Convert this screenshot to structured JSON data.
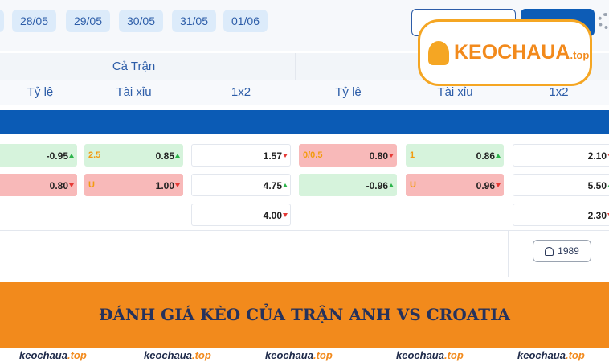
{
  "dates": [
    "28/05",
    "29/05",
    "30/05",
    "31/05",
    "01/06"
  ],
  "header": {
    "period": "Cả Trận",
    "columns": [
      "Tỷ lệ",
      "Tài xỉu",
      "1x2",
      "Tỷ lệ",
      "Tài xỉu",
      "1x2"
    ]
  },
  "rows": [
    [
      {
        "odds": "-0.95",
        "trend": "up",
        "tone": "green"
      },
      {
        "label": "2.5",
        "odds": "0.85",
        "trend": "up",
        "tone": "green"
      },
      {
        "odds": "1.57",
        "trend": "down",
        "tone": "white"
      },
      {
        "label": "0/0.5",
        "odds": "0.80",
        "trend": "down",
        "tone": "red"
      },
      {
        "label": "1",
        "odds": "0.86",
        "trend": "up",
        "tone": "green"
      },
      {
        "odds": "2.10",
        "trend": "down",
        "tone": "white"
      }
    ],
    [
      {
        "odds": "0.80",
        "trend": "down",
        "tone": "red"
      },
      {
        "label": "U",
        "odds": "1.00",
        "trend": "down",
        "tone": "red"
      },
      {
        "odds": "4.75",
        "trend": "up",
        "tone": "white"
      },
      {
        "odds": "-0.96",
        "trend": "up",
        "tone": "green"
      },
      {
        "label": "U",
        "odds": "0.96",
        "trend": "down",
        "tone": "red"
      },
      {
        "odds": "5.50",
        "trend": "up",
        "tone": "white"
      }
    ],
    [
      null,
      null,
      {
        "odds": "4.00",
        "trend": "down",
        "tone": "white"
      },
      null,
      null,
      {
        "odds": "2.30",
        "trend": "down",
        "tone": "white"
      }
    ]
  ],
  "viewers": "1989",
  "logo": {
    "name": "KEOCHAUA",
    "suffix": ".top"
  },
  "banner": "ĐÁNH GIÁ KÈO CỦA TRẬN ANH VS CROATIA",
  "watermarks": [
    {
      "name": "keochaua",
      "suffix": ".top"
    },
    {
      "name": "keochaua",
      "suffix": ".top"
    },
    {
      "name": "keochaua",
      "suffix": ".top"
    },
    {
      "name": "keochaua",
      "suffix": ".top"
    },
    {
      "name": "keochaua",
      "suffix": ".top"
    }
  ]
}
